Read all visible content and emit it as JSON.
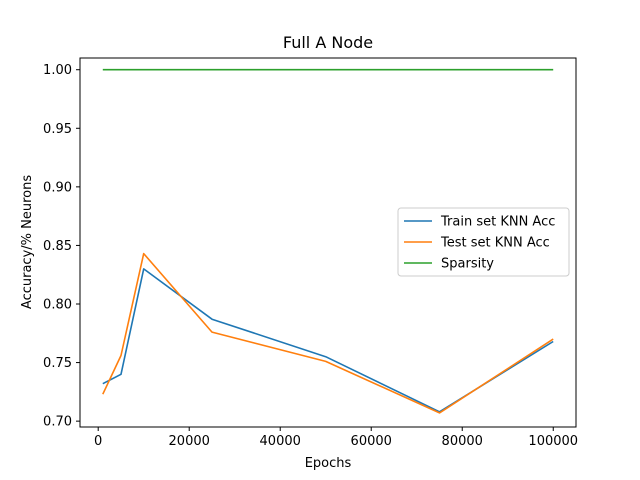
{
  "chart_data": {
    "type": "line",
    "title": "Full A Node",
    "xlabel": "Epochs",
    "ylabel": "Accuracy/% Neurons",
    "xlim": [
      -4000,
      105000
    ],
    "ylim": [
      0.695,
      1.01
    ],
    "xticks": [
      0,
      20000,
      40000,
      60000,
      80000,
      100000
    ],
    "yticks": [
      0.7,
      0.75,
      0.8,
      0.85,
      0.9,
      0.95,
      1.0
    ],
    "xtick_labels": [
      "0",
      "20000",
      "40000",
      "60000",
      "80000",
      "100000"
    ],
    "ytick_labels": [
      "0.70",
      "0.75",
      "0.80",
      "0.85",
      "0.90",
      "0.95",
      "1.00"
    ],
    "grid": false,
    "legend_position": "center-right",
    "series": [
      {
        "name": "Train set KNN Acc",
        "color": "#1f77b4",
        "x": [
          1000,
          5000,
          10000,
          25000,
          50000,
          75000,
          100000
        ],
        "y": [
          0.732,
          0.74,
          0.83,
          0.787,
          0.755,
          0.708,
          0.768
        ]
      },
      {
        "name": "Test set KNN Acc",
        "color": "#ff7f0e",
        "x": [
          1000,
          5000,
          10000,
          25000,
          50000,
          75000,
          100000
        ],
        "y": [
          0.723,
          0.756,
          0.843,
          0.776,
          0.751,
          0.707,
          0.77
        ]
      },
      {
        "name": "Sparsity",
        "color": "#2ca02c",
        "x": [
          1000,
          5000,
          10000,
          25000,
          50000,
          75000,
          100000
        ],
        "y": [
          1.0,
          1.0,
          1.0,
          1.0,
          1.0,
          1.0,
          1.0
        ]
      }
    ]
  }
}
